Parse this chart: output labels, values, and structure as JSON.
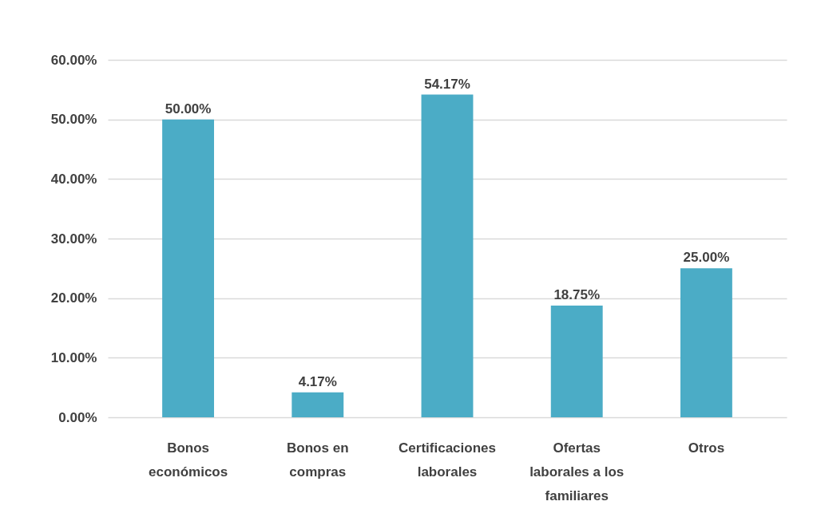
{
  "chart_data": {
    "type": "bar",
    "categories": [
      "Bonos económicos",
      "Bonos en compras",
      "Certificaciones laborales",
      "Ofertas laborales a los familiares",
      "Otros"
    ],
    "values": [
      50.0,
      4.17,
      54.17,
      18.75,
      25.0
    ],
    "value_labels": [
      "50.00%",
      "4.17%",
      "54.17%",
      "18.75%",
      "25.00%"
    ],
    "color": "#4bacc6",
    "ylim": [
      0,
      60
    ],
    "yticks": [
      {
        "value": 0,
        "label": "0.00%"
      },
      {
        "value": 10,
        "label": "10.00%"
      },
      {
        "value": 20,
        "label": "20.00%"
      },
      {
        "value": 30,
        "label": "30.00%"
      },
      {
        "value": 40,
        "label": "40.00%"
      },
      {
        "value": 50,
        "label": "50.00%"
      },
      {
        "value": 60,
        "label": "60.00%"
      }
    ],
    "grid": true
  }
}
